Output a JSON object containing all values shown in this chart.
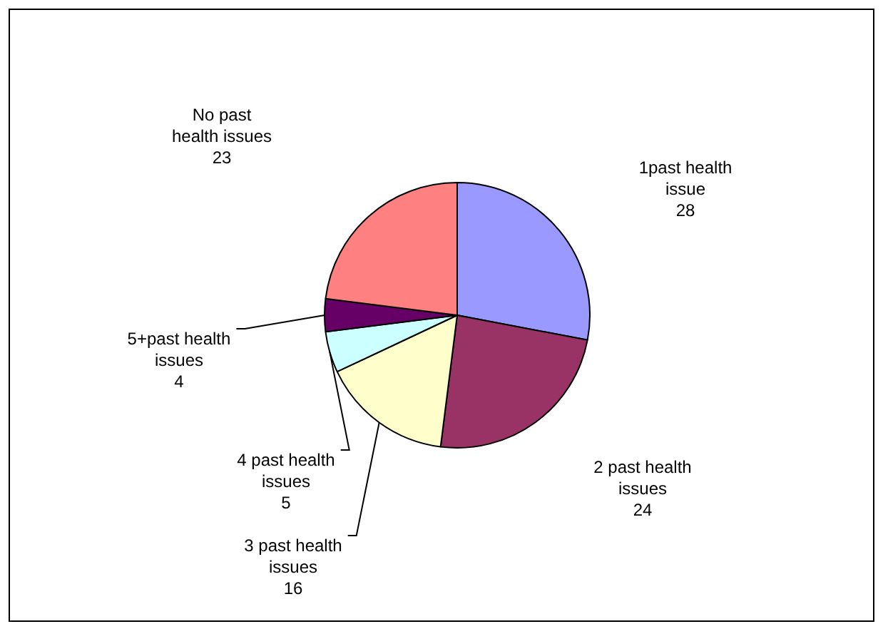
{
  "chart_data": {
    "type": "pie",
    "categories": [
      "1past health issue",
      "2 past health issues",
      "3 past health issues",
      "4 past health issues",
      "5+past health issues",
      "No past health issues"
    ],
    "values": [
      28,
      24,
      16,
      5,
      4,
      23
    ],
    "colors": [
      "#9999ff",
      "#993366",
      "#ffffcc",
      "#ccffff",
      "#660066",
      "#ff8080"
    ],
    "data_labels": true,
    "legend": false
  }
}
